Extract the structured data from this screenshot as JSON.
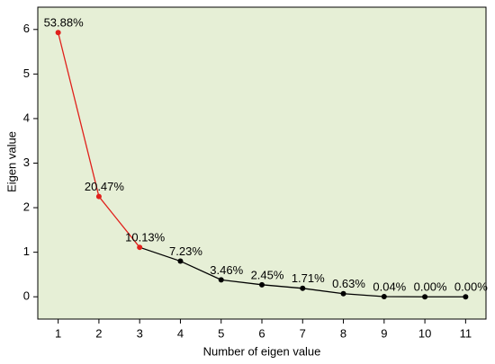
{
  "chart_data": {
    "type": "line",
    "x_label": "Number of eigen value",
    "y_label": "Eigen value",
    "x": [
      1,
      2,
      3,
      4,
      5,
      6,
      7,
      8,
      9,
      10,
      11
    ],
    "series": [
      {
        "color": "#000000",
        "highlight_color": "#e0201b",
        "highlight_until": 3,
        "values": [
          5.93,
          2.25,
          1.11,
          0.8,
          0.38,
          0.27,
          0.19,
          0.07,
          0.004,
          0,
          0
        ]
      }
    ],
    "annotations": [
      "53.88%",
      "20.47%",
      "10.13%",
      "7.23%",
      "3.46%",
      "2.45%",
      "1.71%",
      "0.63%",
      "0.04%",
      "0.00%",
      "0.00%"
    ],
    "xlim": [
      0.5,
      11.5
    ],
    "xticks": [
      1,
      2,
      3,
      4,
      5,
      6,
      7,
      8,
      9,
      10,
      11
    ],
    "ylim": [
      -0.5,
      6.5
    ],
    "yticks": [
      0,
      1,
      2,
      3,
      4,
      5,
      6
    ],
    "background": "#e6efd6"
  }
}
